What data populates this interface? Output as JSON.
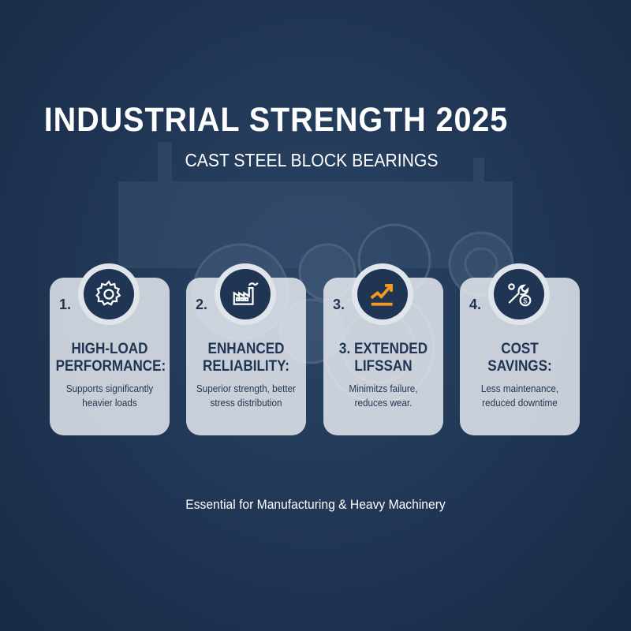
{
  "header": {
    "title": "INDUSTRIAL STRENGTH 2025",
    "subtitle": "CAST STEEL BLOCK BEARINGS"
  },
  "cards": [
    {
      "number": "1.",
      "icon": "gear-icon",
      "heading_line1": "HIGH-LOAD",
      "heading_line2": "PERFORMANCE:",
      "desc_line1": "Supports significantly",
      "desc_line2": "heavier loads"
    },
    {
      "number": "2.",
      "icon": "factory-icon",
      "heading_line1": "ENHANCED",
      "heading_line2": "RELIABILITY:",
      "desc_line1": "Superior strength, better",
      "desc_line2": "stress distribution"
    },
    {
      "number": "3.",
      "icon": "trend-up-icon",
      "heading_line1": "3. EXTENDED",
      "heading_line2": "LIFSSAN",
      "desc_line1": "Minimitzs failure,",
      "desc_line2": "reduces wear."
    },
    {
      "number": "4.",
      "icon": "wrench-money-icon",
      "heading_line1": "COST",
      "heading_line2": "SAVINGS:",
      "desc_line1": "Less maintenance,",
      "desc_line2": "reduced downtime"
    }
  ],
  "footer": "Essential for Manufacturing & Heavy Machinery",
  "colors": {
    "background": "#1f3553",
    "card": "#e6eaf0",
    "accent": "#f39a1e",
    "text": "#1f3553"
  }
}
